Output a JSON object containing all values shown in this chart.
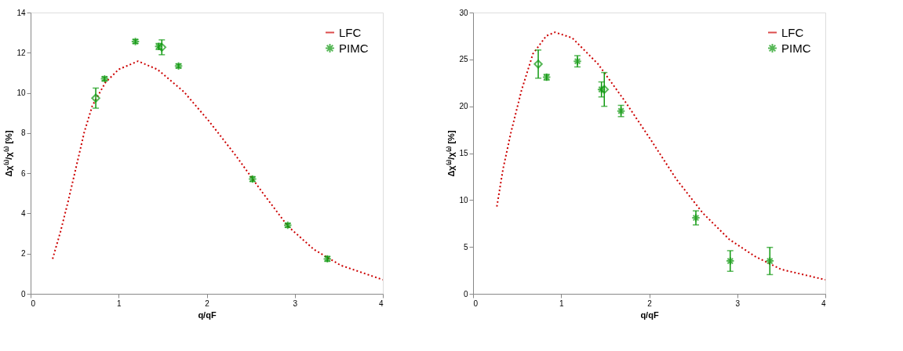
{
  "chart_data": [
    {
      "type": "scatter",
      "xlabel": "q/qF",
      "ylabel": "Δχ⁽¹⁾/χ⁽¹⁾ [%]",
      "xlim": [
        0,
        4
      ],
      "xticks": [
        0,
        1,
        2,
        3,
        4
      ],
      "ylim": [
        0,
        14
      ],
      "yticks": [
        0,
        2,
        4,
        6,
        8,
        10,
        12,
        14
      ],
      "legend": "top right",
      "grid": false,
      "series": [
        {
          "name": "LFC",
          "type": "line",
          "color": "#cc0000",
          "line_style": "dotted",
          "marker": "none",
          "x": [
            0.25,
            0.34,
            0.43,
            0.52,
            0.61,
            0.7,
            0.85,
            1.0,
            1.22,
            1.44,
            1.74,
            2.03,
            2.33,
            2.63,
            2.92,
            3.22,
            3.52,
            4.0
          ],
          "values": [
            1.74,
            3.1,
            4.67,
            6.36,
            8.05,
            9.35,
            10.52,
            11.17,
            11.58,
            11.17,
            10.06,
            8.57,
            6.88,
            5.06,
            3.37,
            2.2,
            1.42,
            0.7
          ]
        },
        {
          "name": "PIMC",
          "color": "#109910",
          "marker": "cross",
          "x": [
            0.84,
            1.19,
            1.455,
            1.68,
            2.52,
            2.92,
            3.37
          ],
          "values": [
            10.7,
            12.56,
            12.31,
            11.34,
            5.71,
            3.41,
            1.74
          ],
          "errors": [
            0.1,
            0.1,
            0.15,
            0.1,
            0.12,
            0.1,
            0.12
          ]
        },
        {
          "color": "#109910",
          "marker": "diamond",
          "x": [
            0.74,
            1.49
          ],
          "values": [
            9.74,
            12.27
          ],
          "errors": [
            0.5,
            0.37
          ]
        }
      ]
    },
    {
      "type": "scatter",
      "xlabel": "q/qF",
      "ylabel": "Δχ⁽²⁾/χ⁽²⁾ [%]",
      "xlim": [
        0,
        4
      ],
      "xticks": [
        0,
        1,
        2,
        3,
        4
      ],
      "ylim": [
        0,
        30
      ],
      "yticks": [
        0,
        5,
        10,
        15,
        20,
        25,
        30
      ],
      "legend": "top right",
      "grid": false,
      "series": [
        {
          "name": "LFC",
          "type": "line",
          "color": "#cc0000",
          "line_style": "dotted",
          "marker": "none",
          "x": [
            0.27,
            0.34,
            0.43,
            0.55,
            0.68,
            0.83,
            0.93,
            1.125,
            1.42,
            1.72,
            2.02,
            2.31,
            2.61,
            2.91,
            3.2,
            3.5,
            4.0
          ],
          "values": [
            9.3,
            13.3,
            17.2,
            21.7,
            25.6,
            27.5,
            27.9,
            27.3,
            24.5,
            20.6,
            16.4,
            12.2,
            8.6,
            5.8,
            4.0,
            2.6,
            1.5
          ]
        },
        {
          "name": "PIMC",
          "color": "#109910",
          "marker": "cross",
          "x": [
            0.835,
            1.185,
            1.458,
            1.68,
            2.53,
            2.92,
            3.37
          ],
          "values": [
            23.1,
            24.8,
            21.8,
            19.5,
            8.1,
            3.5,
            3.5
          ],
          "errors": [
            0.3,
            0.6,
            0.8,
            0.6,
            0.75,
            1.1,
            1.45
          ]
        },
        {
          "color": "#109910",
          "marker": "diamond",
          "x": [
            0.74,
            1.49
          ],
          "values": [
            24.5,
            21.8
          ],
          "errors": [
            1.5,
            1.8
          ]
        }
      ]
    }
  ]
}
